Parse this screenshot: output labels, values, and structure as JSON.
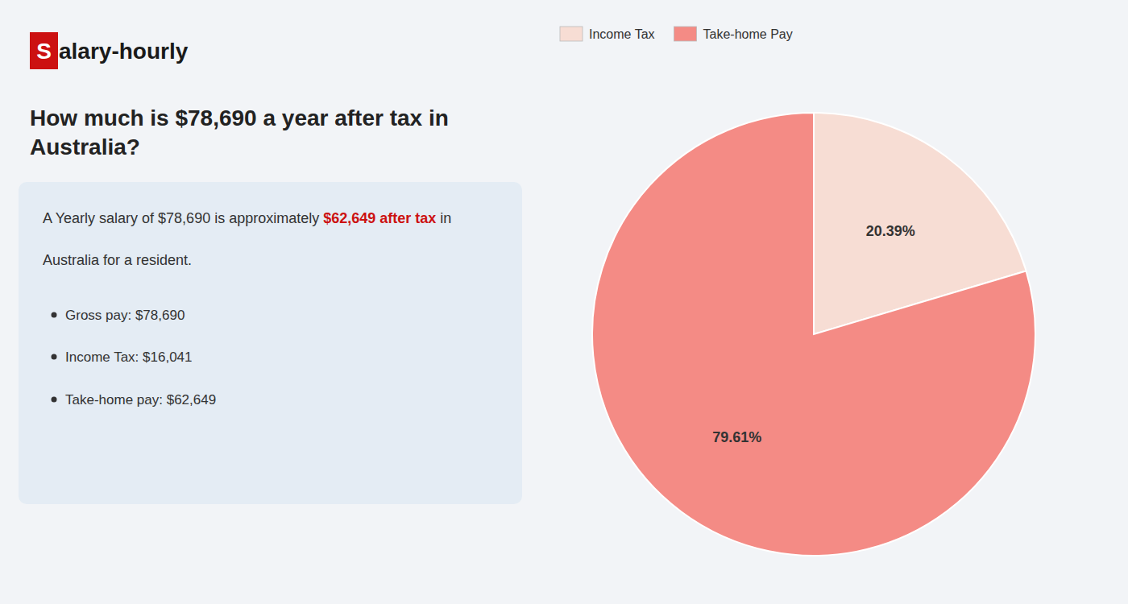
{
  "chart_data": {
    "type": "pie",
    "title": "How much is $78,690 a year after tax in Australia?",
    "categories": [
      "Income Tax",
      "Take-home Pay"
    ],
    "values": [
      20.39,
      79.61
    ],
    "value_labels": [
      "20.39%",
      "79.61%"
    ],
    "colors": [
      "#f7ddd4",
      "#f48b85"
    ],
    "data_labels": true,
    "legend": "top-left",
    "annotations": [
      "S",
      "alary-hourly",
      "A Yearly salary of $78,690 is approximately ",
      "$62,649 after tax",
      " in",
      "Australia for a resident.",
      "Gross pay: $78,690",
      "Income Tax: $16,041",
      "Take-home pay: $62,649"
    ]
  }
}
